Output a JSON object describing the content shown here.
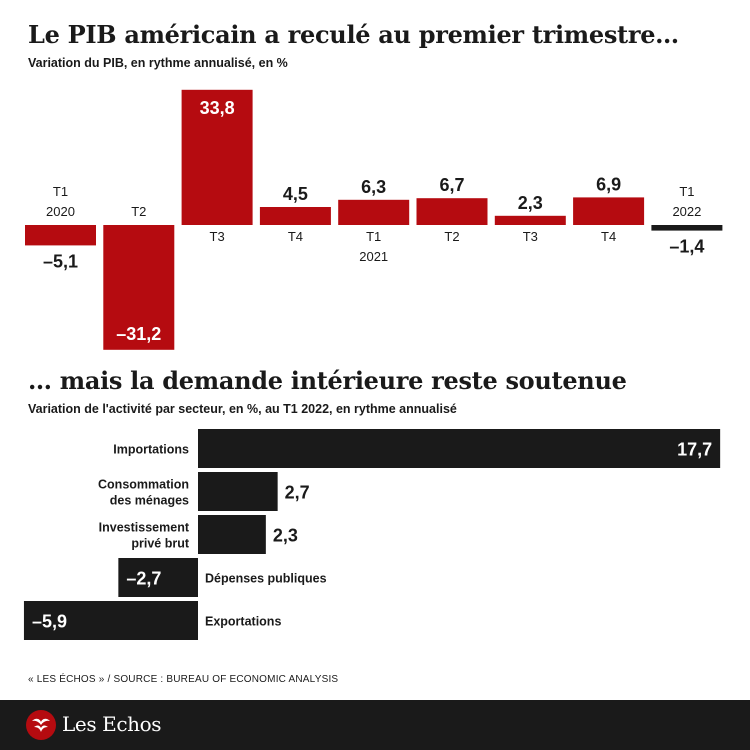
{
  "source": "« LES ÉCHOS » / SOURCE : BUREAU OF ECONOMIC ANALYSIS",
  "brand": {
    "name": "Les Echos",
    "icon": "les-echos-logo-icon"
  },
  "colors": {
    "red": "#b50b10",
    "dark": "#1a1a1a",
    "white": "#ffffff"
  },
  "chart_data": [
    {
      "type": "bar",
      "title": "Le PIB américain a reculé au premier trimestre…",
      "subtitle": "Variation du PIB, en rythme annualisé, en %",
      "categories": [
        [
          "T1",
          "2020"
        ],
        [
          "T2"
        ],
        [
          "T3"
        ],
        [
          "T4"
        ],
        [
          "T1",
          "2021"
        ],
        [
          "T2"
        ],
        [
          "T3"
        ],
        [
          "T4"
        ],
        [
          "T1",
          "2022"
        ]
      ],
      "values": [
        -5.1,
        -31.2,
        33.8,
        4.5,
        6.3,
        6.7,
        2.3,
        6.9,
        -1.4
      ],
      "data_labels": [
        "–5,1",
        "–31,2",
        "33,8",
        "4,5",
        "6,3",
        "6,7",
        "2,3",
        "6,9",
        "–1,4"
      ],
      "bar_colors": [
        "#b50b10",
        "#b50b10",
        "#b50b10",
        "#b50b10",
        "#b50b10",
        "#b50b10",
        "#b50b10",
        "#b50b10",
        "#1a1a1a"
      ],
      "ylim": [
        -31.2,
        33.8
      ],
      "grid": false,
      "legend": "none"
    },
    {
      "type": "bar",
      "orientation": "horizontal",
      "title": "… mais la demande intérieure reste soutenue",
      "subtitle": "Variation de l'activité par secteur, en %, au T1 2022, en rythme annualisé",
      "categories": [
        [
          "Importations"
        ],
        [
          "Consommation",
          "des ménages"
        ],
        [
          "Investissement",
          "privé brut"
        ],
        [
          "Dépenses publiques"
        ],
        [
          "Exportations"
        ]
      ],
      "values": [
        17.7,
        2.7,
        2.3,
        -2.7,
        -5.9
      ],
      "data_labels": [
        "17,7",
        "2,7",
        "2,3",
        "–2,7",
        "–5,9"
      ],
      "bar_color": "#1a1a1a",
      "xlim": [
        -5.9,
        17.7
      ],
      "grid": false,
      "legend": "none"
    }
  ]
}
